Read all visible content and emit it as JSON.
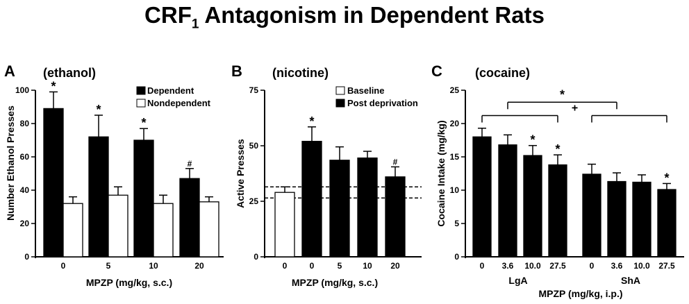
{
  "figure": {
    "title_prefix": "CRF",
    "title_subscript": "1",
    "title_suffix": " Antagonism in Dependent Rats",
    "colors": {
      "dependent": "#000000",
      "nondependent": "#ffffff",
      "line": "#000000"
    }
  },
  "chart_data": [
    {
      "type": "bar",
      "panel": "A",
      "subtitle": "(ethanol)",
      "ylabel": "Number Ethanol Presses",
      "xlabel": "MPZP (mg/kg, s.c.)",
      "ylim": [
        0,
        100
      ],
      "yticks": [
        0,
        20,
        40,
        60,
        80,
        100
      ],
      "categories": [
        "0",
        "5",
        "10",
        "20"
      ],
      "legend_position": "top-right",
      "series": [
        {
          "name": "Dependent",
          "fill": "black",
          "values": [
            89,
            72,
            70,
            47
          ],
          "errors": [
            10,
            13,
            7,
            6
          ],
          "markers": [
            "*",
            "*",
            "*",
            "#"
          ]
        },
        {
          "name": "Nondependent",
          "fill": "white",
          "values": [
            32,
            37,
            32,
            33
          ],
          "errors": [
            4,
            5,
            5,
            3
          ],
          "markers": [
            "",
            "",
            "",
            ""
          ]
        }
      ]
    },
    {
      "type": "bar",
      "panel": "B",
      "subtitle": "(nicotine)",
      "ylabel": "Active Presses",
      "xlabel": "MPZP (mg/kg, s.c.)",
      "ylim": [
        0,
        75
      ],
      "yticks": [
        0,
        25,
        50,
        75
      ],
      "categories": [
        "0",
        "0",
        "5",
        "10",
        "20"
      ],
      "legend_position": "top-right",
      "legend": [
        {
          "name": "Baseline",
          "fill": "white"
        },
        {
          "name": "Post deprivation",
          "fill": "black"
        }
      ],
      "values": [
        29,
        52,
        43.5,
        44.5,
        36
      ],
      "errors": [
        2.5,
        6.5,
        6,
        3,
        4.5
      ],
      "fills": [
        "white",
        "black",
        "black",
        "black",
        "black"
      ],
      "markers": [
        "",
        "*",
        "",
        "",
        "#"
      ],
      "reference_lines": [
        31.5,
        26.5
      ]
    },
    {
      "type": "bar",
      "panel": "C",
      "subtitle": "(cocaine)",
      "ylabel": "Cocaine Intake (mg/kg)",
      "xlabel": "MPZP (mg/kg, i.p.)",
      "ylim": [
        0,
        25
      ],
      "yticks": [
        0,
        5,
        10,
        15,
        20,
        25
      ],
      "categories": [
        "0",
        "3.6",
        "10.0",
        "27.5",
        "0",
        "3.6",
        "10.0",
        "27.5"
      ],
      "group_labels": [
        "LgA",
        "ShA"
      ],
      "values": [
        18,
        16.8,
        15.2,
        13.8,
        12.4,
        11.3,
        11.2,
        10.1
      ],
      "errors": [
        1.3,
        1.5,
        1.5,
        1.5,
        1.5,
        1.3,
        1.1,
        0.9
      ],
      "markers": [
        "",
        "",
        "*",
        "*",
        "",
        "",
        "",
        "*"
      ],
      "brackets": [
        {
          "label": "*",
          "from_bar": 1,
          "to_bar": 5,
          "level": 23.2
        },
        {
          "label": "+",
          "from_bar": 0,
          "to_bar": 3,
          "level": 21.2
        },
        {
          "label": "+",
          "from_bar": 4,
          "to_bar": 7,
          "level": 21.2
        }
      ]
    }
  ]
}
